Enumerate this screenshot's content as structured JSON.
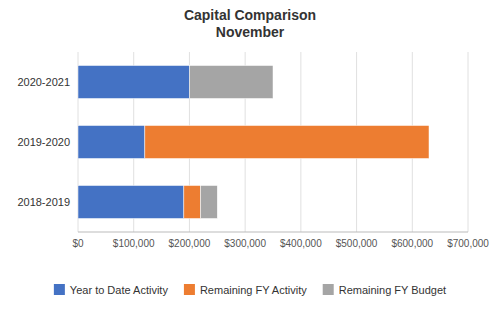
{
  "chart_data": {
    "type": "bar",
    "orientation": "horizontal",
    "stacked": true,
    "title": "Capital Comparison\nNovember",
    "categories": [
      "2018-2019",
      "2019-2020",
      "2020-2021"
    ],
    "series": [
      {
        "name": "Year to Date Activity",
        "color": "#4472C4",
        "values": [
          190000,
          120000,
          200000
        ]
      },
      {
        "name": "Remaining FY Activity",
        "color": "#ED7D31",
        "values": [
          30000,
          510000,
          0
        ]
      },
      {
        "name": "Remaining FY Budget",
        "color": "#A5A5A5",
        "values": [
          30000,
          0,
          150000
        ]
      }
    ],
    "xlim": [
      0,
      700000
    ],
    "xticks": [
      {
        "value": 0,
        "label": "$0"
      },
      {
        "value": 100000,
        "label": "$100,000"
      },
      {
        "value": 200000,
        "label": "$200,000"
      },
      {
        "value": 300000,
        "label": "$300,000"
      },
      {
        "value": 400000,
        "label": "$400,000"
      },
      {
        "value": 500000,
        "label": "$500,000"
      },
      {
        "value": 600000,
        "label": "$600,000"
      },
      {
        "value": 700000,
        "label": "$700,000"
      }
    ],
    "grid": true,
    "legend": "bottom"
  }
}
